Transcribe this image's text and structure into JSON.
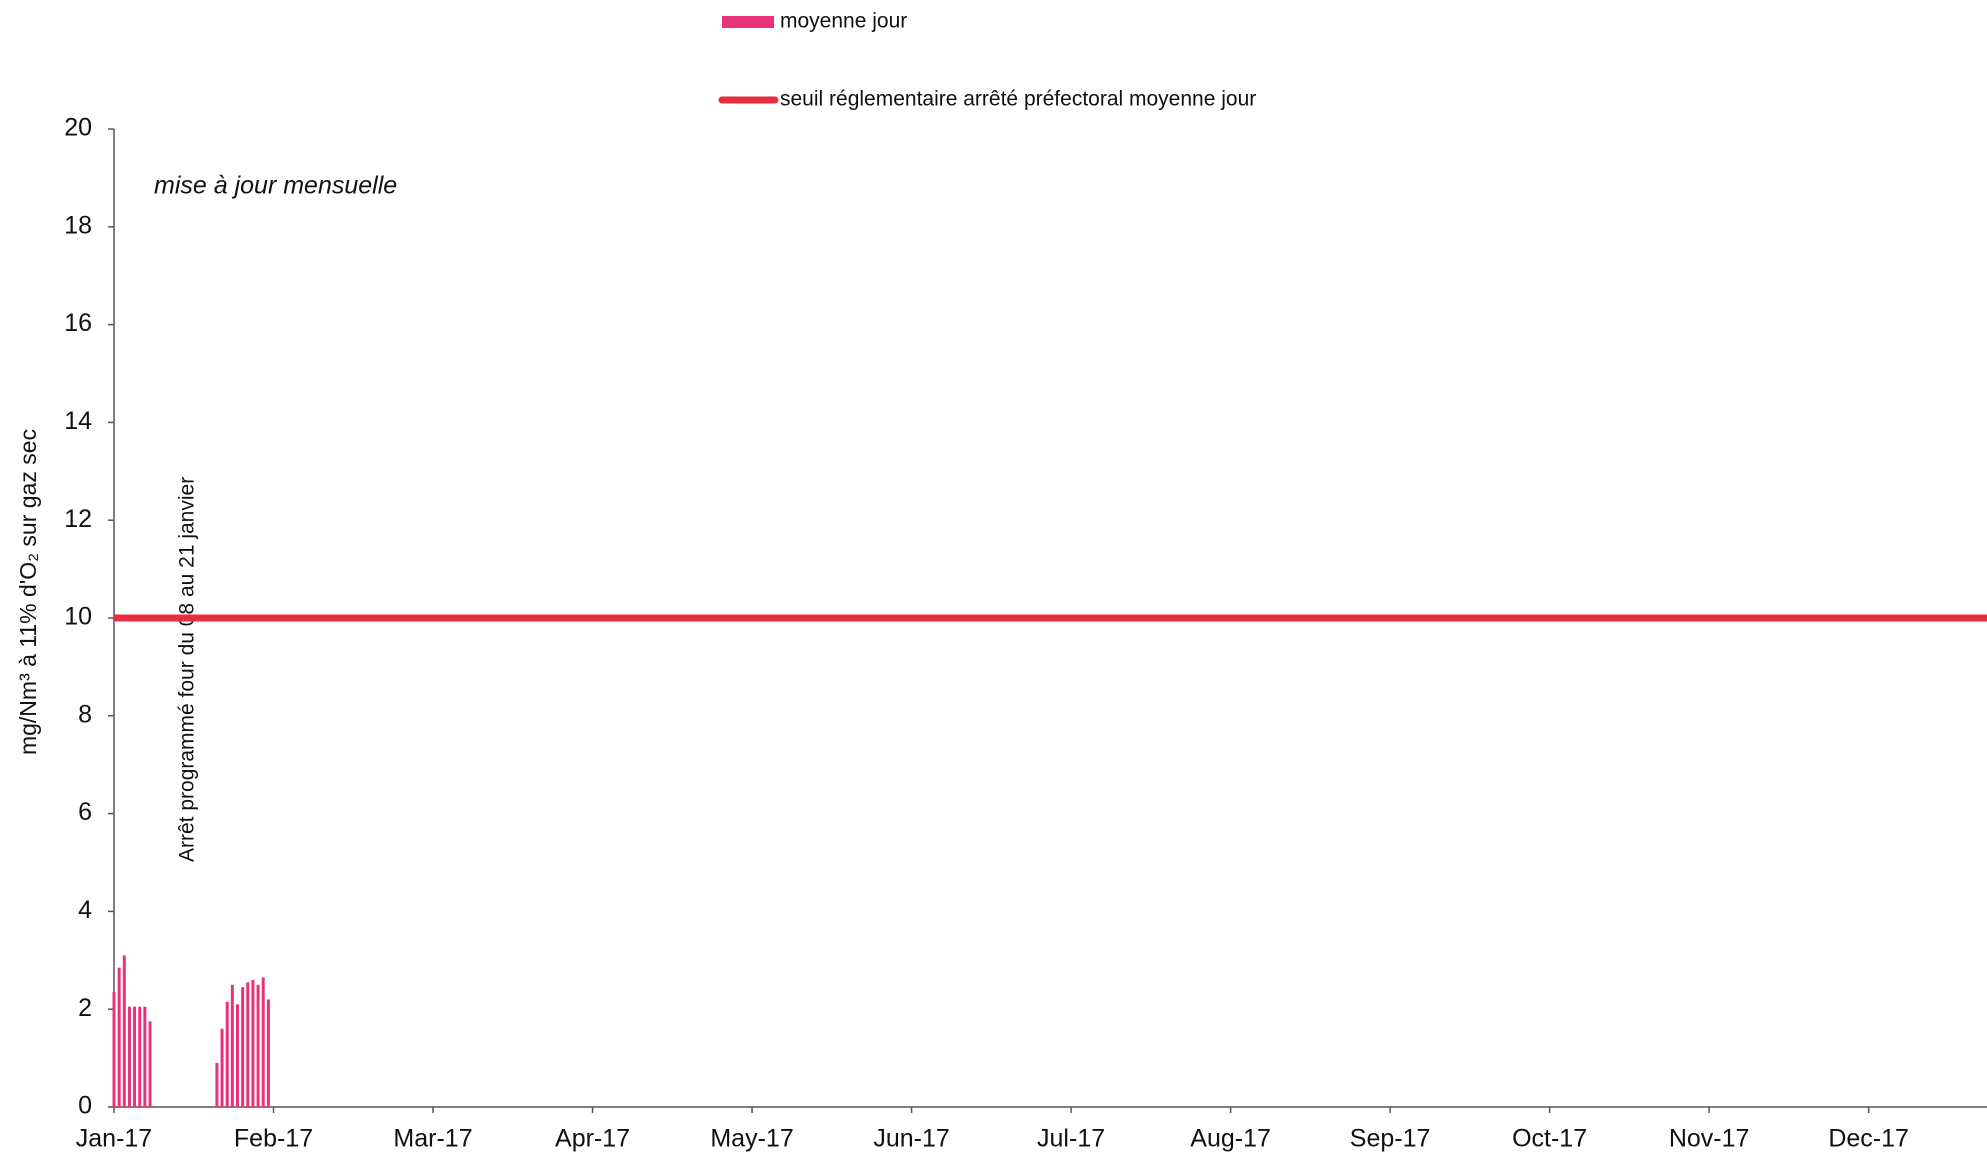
{
  "chart_data": {
    "type": "bar",
    "y_label": "mg/Nm³ à 11% d'O₂ sur gaz sec",
    "annotations": [
      "mise à jour mensuelle",
      "Arrêt programmé four du 08 au 21 janvier"
    ],
    "series": [
      {
        "name": "moyenne jour",
        "type": "bar",
        "color": "#e8337a",
        "x": [
          0,
          1,
          2,
          3,
          4,
          5,
          6,
          7,
          20,
          21,
          22,
          23,
          24,
          25,
          26,
          27,
          28,
          29,
          30
        ],
        "values": [
          2.35,
          2.85,
          3.1,
          2.05,
          2.05,
          2.05,
          2.05,
          1.75,
          0.9,
          1.6,
          2.15,
          2.5,
          2.1,
          2.45,
          2.55,
          2.6,
          2.5,
          2.65,
          2.2
        ]
      },
      {
        "name": "seuil  réglementaire arrêté préfectoral moyenne jour",
        "type": "line",
        "color": "#e62e3e",
        "x": [
          0,
          364
        ],
        "values": [
          10,
          10
        ]
      }
    ],
    "xlim": [
      0,
      364
    ],
    "xticks": [
      {
        "value": 0,
        "label": "Jan-17"
      },
      {
        "value": 31,
        "label": "Feb-17"
      },
      {
        "value": 62,
        "label": "Mar-17"
      },
      {
        "value": 93,
        "label": "Apr-17"
      },
      {
        "value": 124,
        "label": "May-17"
      },
      {
        "value": 155,
        "label": "Jun-17"
      },
      {
        "value": 186,
        "label": "Jul-17"
      },
      {
        "value": 217,
        "label": "Aug-17"
      },
      {
        "value": 248,
        "label": "Sep-17"
      },
      {
        "value": 279,
        "label": "Oct-17"
      },
      {
        "value": 310,
        "label": "Nov-17"
      },
      {
        "value": 341,
        "label": "Dec-17"
      }
    ],
    "ylim": [
      0,
      20
    ],
    "yticks": [
      0,
      2,
      4,
      6,
      8,
      10,
      12,
      14,
      16,
      18,
      20
    ],
    "grid": false
  }
}
